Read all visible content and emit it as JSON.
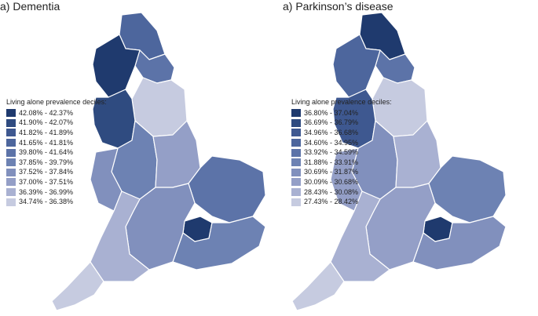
{
  "panels": [
    {
      "title": "a) Dementia",
      "legend_title": "Living alone prevalence deciles:",
      "legend": [
        {
          "label": "42.08% - 42.37%",
          "color": "#1f3a6e"
        },
        {
          "label": "41.90% - 42.07%",
          "color": "#2f4b80"
        },
        {
          "label": "41.82% - 41.89%",
          "color": "#3e5890"
        },
        {
          "label": "41.65% - 41.81%",
          "color": "#4d669d"
        },
        {
          "label": "39.80% - 41.64%",
          "color": "#5c73a8"
        },
        {
          "label": "37.85% - 39.79%",
          "color": "#6d82b3"
        },
        {
          "label": "37.52% - 37.84%",
          "color": "#8190bd"
        },
        {
          "label": "37.00% - 37.51%",
          "color": "#949fc7"
        },
        {
          "label": "36.39% - 36.99%",
          "color": "#a9b1d2"
        },
        {
          "label": "34.74% - 36.38%",
          "color": "#c6cbe0"
        }
      ],
      "region_colors": {
        "north": "#4d669d",
        "northwest": "#1f3a6e",
        "northeast": "#5c73a8",
        "yorkshire": "#c6cbe0",
        "mersey": "#2f4b80",
        "midlands_w": "#6d82b3",
        "midlands_e": "#949fc7",
        "east": "#5c73a8",
        "london": "#1f3a6e",
        "southeast": "#6d82b3",
        "south": "#8190bd",
        "southwest": "#a9b1d2",
        "cornwall": "#c6cbe0",
        "wales_border": "#8190bd"
      }
    },
    {
      "title": "a) Parkinson’s disease",
      "legend_title": "Living alone prevalence deciles:",
      "legend": [
        {
          "label": "36.80% - 37.04%",
          "color": "#1f3a6e"
        },
        {
          "label": "36.69% - 36.79%",
          "color": "#2f4b80"
        },
        {
          "label": "34.96% - 36.68%",
          "color": "#3e5890"
        },
        {
          "label": "34.60% - 34.95%",
          "color": "#4d669d"
        },
        {
          "label": "33.92% - 34.59%",
          "color": "#5c73a8"
        },
        {
          "label": "31.88% - 33.91%",
          "color": "#6d82b3"
        },
        {
          "label": "30.69% - 31.87%",
          "color": "#8190bd"
        },
        {
          "label": "30.09% - 30.68%",
          "color": "#949fc7"
        },
        {
          "label": "28.43% - 30.08%",
          "color": "#a9b1d2"
        },
        {
          "label": "27.43% - 28.42%",
          "color": "#c6cbe0"
        }
      ],
      "region_colors": {
        "north": "#1f3a6e",
        "northwest": "#4d669d",
        "northeast": "#5c73a8",
        "yorkshire": "#c6cbe0",
        "mersey": "#3e5890",
        "midlands_w": "#8190bd",
        "midlands_e": "#a9b1d2",
        "east": "#6d82b3",
        "london": "#1f3a6e",
        "southeast": "#8190bd",
        "south": "#949fc7",
        "southwest": "#a9b1d2",
        "cornwall": "#c6cbe0",
        "wales_border": "#949fc7"
      }
    }
  ]
}
